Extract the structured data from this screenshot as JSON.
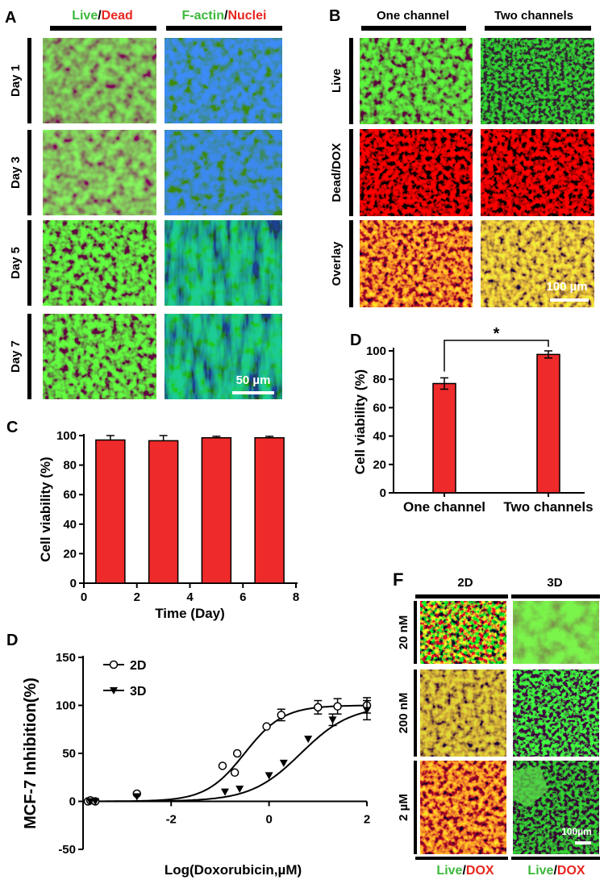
{
  "colors": {
    "live": "#3cb83c",
    "dead": "#e8261e",
    "bar": "#ee2a2a",
    "black": "#000000"
  },
  "panelA": {
    "letter": "A",
    "col1": {
      "a": "Live",
      "sep": "/",
      "b": "Dead"
    },
    "col2": {
      "a": "F-actin",
      "sep": "/",
      "b": "Nuclei"
    },
    "rows": [
      "Day 1",
      "Day 3",
      "Day 5",
      "Day 7"
    ],
    "scale": "50 µm"
  },
  "panelB": {
    "letter": "B",
    "cols": [
      "One channel",
      "Two channels"
    ],
    "rows": [
      "Live",
      "Dead/DOX",
      "Overlay"
    ],
    "scale": "100 µm"
  },
  "panelF": {
    "letter": "F",
    "cols": [
      "2D",
      "3D"
    ],
    "rows": [
      "20 nM",
      "200 nM",
      "2 µM"
    ],
    "scale": "100µm",
    "footer": {
      "a": "Live",
      "sep": "/",
      "b": "DOX"
    }
  },
  "chart_data": [
    {
      "id": "C",
      "letter": "C",
      "type": "bar",
      "title": "",
      "xlabel": "Time (Day)",
      "ylabel": "Cell viability (%)",
      "x": [
        1,
        3,
        5,
        7
      ],
      "values": [
        97,
        96.5,
        98.5,
        98.5
      ],
      "errors": [
        3,
        3.5,
        1,
        1
      ],
      "xlim": [
        0,
        8
      ],
      "ylim": [
        0,
        100
      ],
      "xticks": [
        "0",
        "2",
        "4",
        "6",
        "8"
      ],
      "yticks": [
        "0",
        "20",
        "40",
        "60",
        "80",
        "100"
      ]
    },
    {
      "id": "D1",
      "letter": "D",
      "type": "bar",
      "title": "",
      "xlabel": "",
      "ylabel": "Cell viability (%)",
      "categories": [
        "One channel",
        "Two channels"
      ],
      "values": [
        77,
        97.5
      ],
      "errors": [
        4,
        2.5
      ],
      "ylim": [
        0,
        100
      ],
      "yticks": [
        "0",
        "20",
        "40",
        "60",
        "80",
        "100"
      ],
      "annotation": "*"
    },
    {
      "id": "D2",
      "letter": "D",
      "type": "scatter",
      "title": "",
      "xlabel": "Log(Doxorubicin,µM)",
      "ylabel": "MCF-7 Inhibition(%)",
      "xlim": [
        -3.8,
        2
      ],
      "ylim": [
        -50,
        150
      ],
      "xticks": [
        "-2",
        "0",
        "2"
      ],
      "yticks": [
        "-50",
        "0",
        "50",
        "100",
        "150"
      ],
      "series": [
        {
          "name": "2D",
          "marker": "circle",
          "x": [
            -3.7,
            -3.65,
            -3.55,
            -2.7,
            -0.95,
            -0.7,
            -0.65,
            -0.05,
            0.25,
            1.0,
            1.4,
            2.0
          ],
          "y": [
            0,
            1,
            0,
            8,
            37,
            30,
            50,
            78,
            90,
            98,
            99,
            100
          ],
          "err": [
            0,
            0,
            0,
            0,
            0,
            0,
            0,
            0,
            6,
            7,
            8,
            8
          ],
          "fit": {
            "bottom": 0,
            "top": 100,
            "logec50": -0.5,
            "slope": 1.1
          }
        },
        {
          "name": "3D",
          "marker": "triangle-down",
          "x": [
            -3.65,
            -3.55,
            -2.7,
            -0.9,
            -0.6,
            0.0,
            0.3,
            0.8,
            1.3,
            2.0
          ],
          "y": [
            0,
            0,
            5,
            10,
            13,
            27,
            40,
            65,
            85,
            95
          ],
          "err": [
            0,
            0,
            0,
            0,
            0,
            0,
            0,
            0,
            6,
            10
          ],
          "fit": {
            "bottom": 0,
            "top": 100,
            "logec50": 0.65,
            "slope": 0.85
          }
        }
      ]
    }
  ]
}
